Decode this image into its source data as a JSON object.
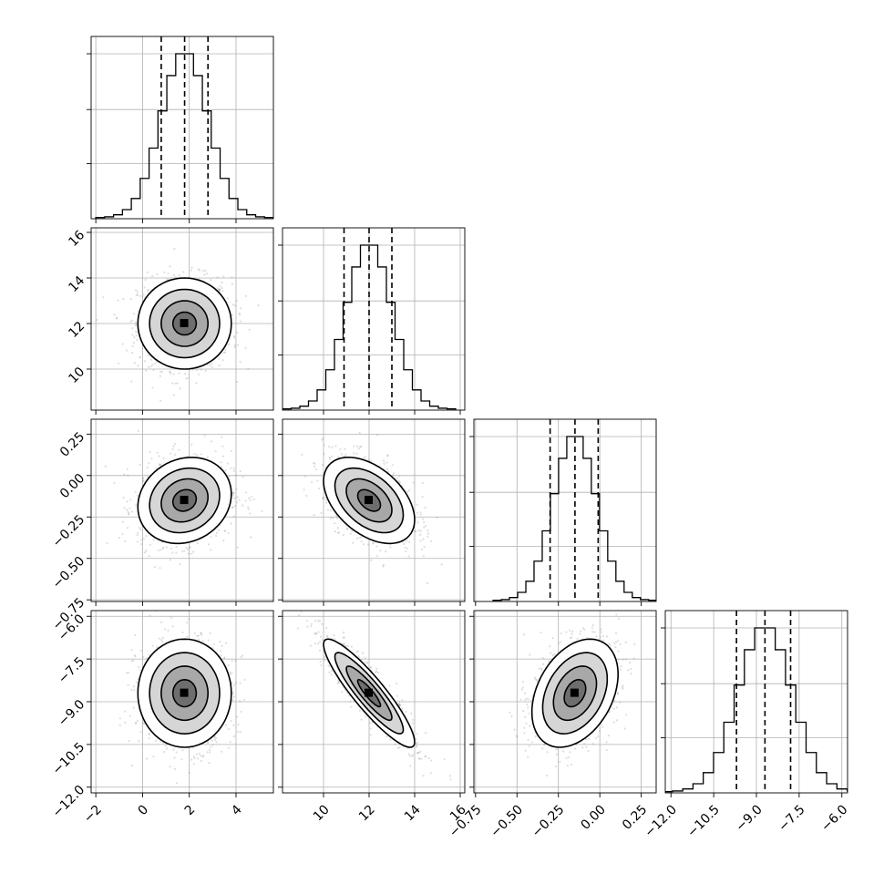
{
  "chart_data": {
    "type": "corner",
    "title": "",
    "parameters": [
      {
        "mean": 1.8,
        "sd": 1.0,
        "range": [
          -2.2,
          5.6
        ],
        "ticks": [
          -2,
          0,
          2,
          4
        ],
        "tick_labels": [
          "−2",
          "0",
          "2",
          "4"
        ],
        "quantiles": [
          0.8,
          1.8,
          2.8
        ]
      },
      {
        "mean": 12.0,
        "sd": 1.0,
        "range": [
          8.2,
          16.2
        ],
        "ticks": [
          10,
          12,
          14,
          16
        ],
        "tick_labels": [
          "10",
          "12",
          "14",
          "16"
        ],
        "quantiles": [
          10.9,
          12.0,
          13.0
        ]
      },
      {
        "mean": -0.15,
        "sd": 0.13,
        "range": [
          -0.76,
          0.34
        ],
        "ticks": [
          -0.75,
          -0.5,
          -0.25,
          0.0,
          0.25
        ],
        "tick_labels": [
          "−0.75",
          "−0.50",
          "−0.25",
          "0.00",
          "0.25"
        ],
        "quantiles": [
          -0.3,
          -0.15,
          -0.01
        ]
      },
      {
        "mean": -8.7,
        "sd": 0.95,
        "range": [
          -12.2,
          -5.8
        ],
        "ticks": [
          -12.0,
          -10.5,
          -9.0,
          -7.5,
          -6.0
        ],
        "tick_labels": [
          "−12.0",
          "−10.5",
          "−9.0",
          "−7.5",
          "−6.0"
        ],
        "quantiles": [
          -9.7,
          -8.7,
          -7.8
        ]
      }
    ],
    "correlations": [
      [
        1.0,
        0.0,
        0.15,
        0.0
      ],
      [
        0.0,
        1.0,
        -0.45,
        -0.9
      ],
      [
        0.15,
        -0.45,
        1.0,
        0.35
      ],
      [
        0.0,
        -0.9,
        0.35,
        1.0
      ]
    ],
    "contour_levels_sigma": [
      0.5,
      1.0,
      1.5,
      2.0
    ],
    "histogram_bins": 20,
    "grid": true
  }
}
